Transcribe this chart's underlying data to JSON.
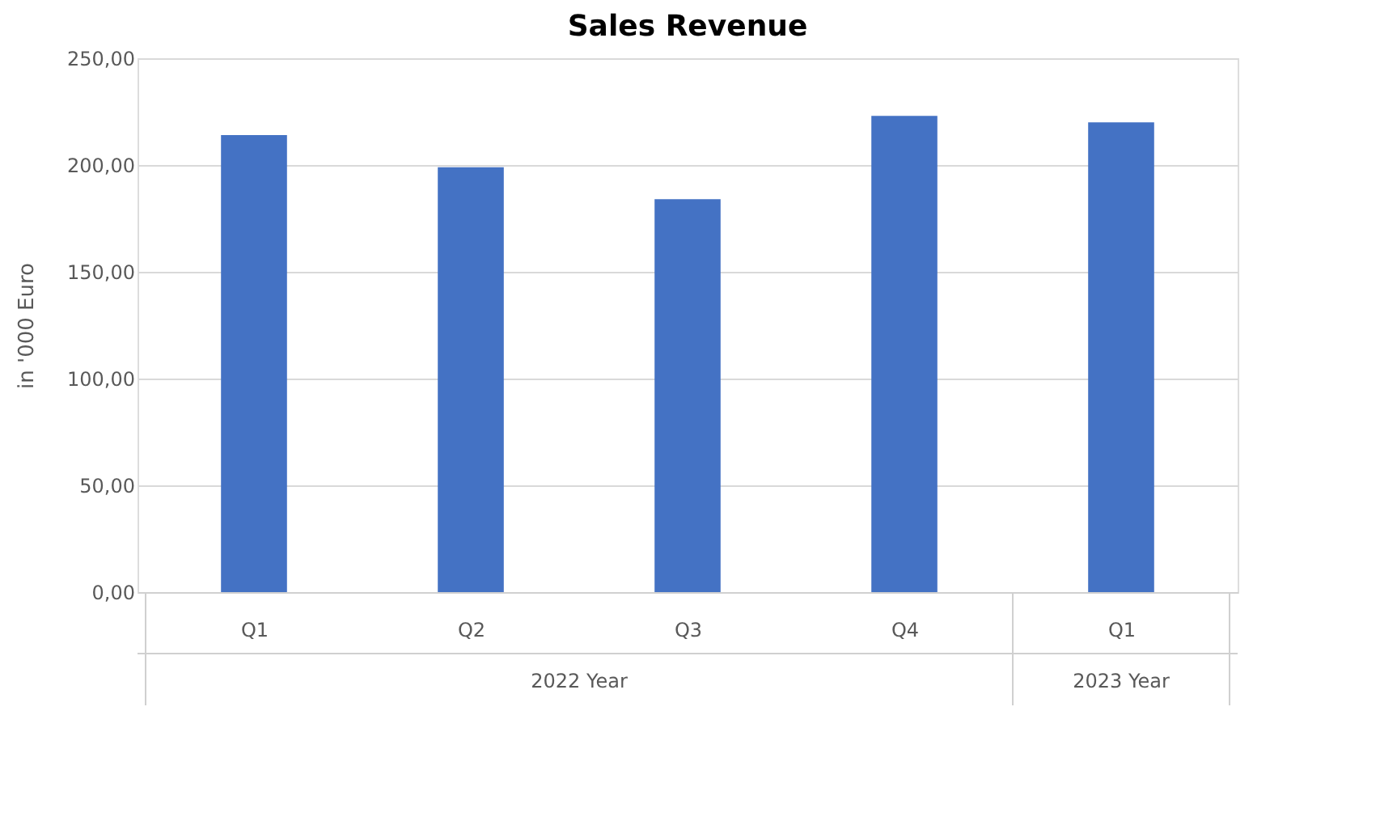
{
  "chart_data": {
    "type": "bar",
    "title": "Sales Revenue",
    "ylabel": "in '000 Euro",
    "categories": [
      "Q1",
      "Q2",
      "Q3",
      "Q4",
      "Q1"
    ],
    "values": [
      214,
      199,
      184,
      223,
      220
    ],
    "color": "#4472c4",
    "ylim": [
      0,
      250
    ],
    "yticks": [
      {
        "value": 0,
        "label": "0,00"
      },
      {
        "value": 50,
        "label": "50,00"
      },
      {
        "value": 100,
        "label": "100,00"
      },
      {
        "value": 150,
        "label": "150,00"
      },
      {
        "value": 200,
        "label": "200,00"
      },
      {
        "value": 250,
        "label": "250,00"
      }
    ],
    "grid": "y",
    "annotations": [
      "2022 Year",
      "2023 Year"
    ]
  }
}
